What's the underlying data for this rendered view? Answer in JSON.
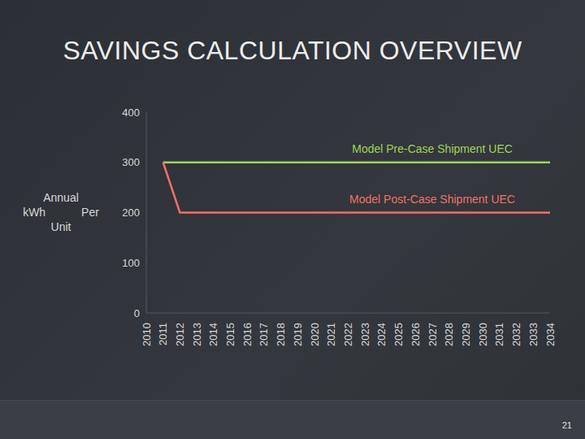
{
  "chart_data": {
    "type": "line",
    "title": "SAVINGS CALCULATION OVERVIEW",
    "y_label": "Annual kWh Per Unit",
    "categories": [
      "2010",
      "2011",
      "2012",
      "2013",
      "2014",
      "2015",
      "2016",
      "2017",
      "2018",
      "2019",
      "2020",
      "2021",
      "2022",
      "2023",
      "2024",
      "2025",
      "2026",
      "2027",
      "2028",
      "2029",
      "2030",
      "2031",
      "2032",
      "2033",
      "2034"
    ],
    "series": [
      {
        "name": "Model Pre-Case Shipment UEC",
        "color": "#9fd35b",
        "values": [
          null,
          300,
          300,
          300,
          300,
          300,
          300,
          300,
          300,
          300,
          300,
          300,
          300,
          300,
          300,
          300,
          300,
          300,
          300,
          300,
          300,
          300,
          300,
          300,
          300
        ]
      },
      {
        "name": "Model Post-Case Shipment UEC",
        "color": "#f0706a",
        "values": [
          null,
          300,
          200,
          200,
          200,
          200,
          200,
          200,
          200,
          200,
          200,
          200,
          200,
          200,
          200,
          200,
          200,
          200,
          200,
          200,
          200,
          200,
          200,
          200,
          200
        ]
      }
    ],
    "ylim": [
      0,
      400
    ],
    "yticks": [
      0,
      100,
      200,
      300,
      400
    ],
    "grid": false
  },
  "slide": {
    "page_number": "21"
  }
}
